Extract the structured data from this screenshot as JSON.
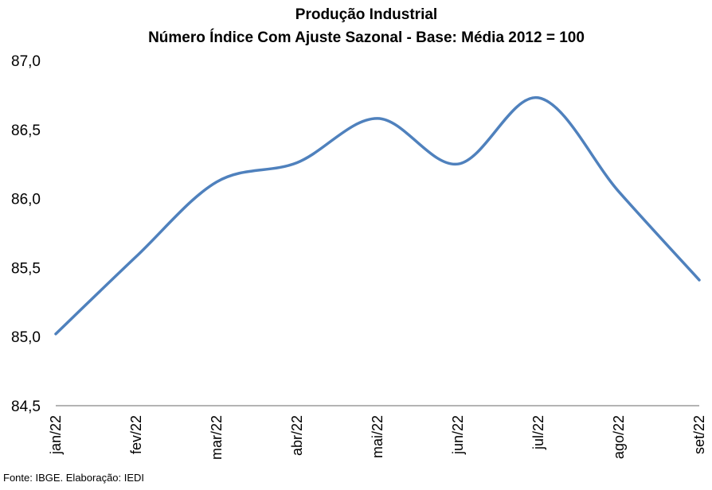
{
  "chart_data": {
    "type": "line",
    "title": "Produção Industrial",
    "subtitle": "Número Índice Com Ajuste Sazonal - Base: Média 2012 = 100",
    "xlabel": "",
    "ylabel": "",
    "categories": [
      "jan/22",
      "fev/22",
      "mar/22",
      "abr/22",
      "mai/22",
      "jun/22",
      "jul/22",
      "ago/22",
      "set/22"
    ],
    "series": [
      {
        "values": [
          85.02,
          85.58,
          86.12,
          86.26,
          86.58,
          86.25,
          86.73,
          86.05,
          85.41
        ],
        "color": "#4f81bd"
      }
    ],
    "ylim": [
      84.5,
      87.0
    ],
    "yticks": [
      "87,0",
      "86,5",
      "86,0",
      "85,5",
      "85,0",
      "84,5"
    ],
    "ytick_values": [
      87.0,
      86.5,
      86.0,
      85.5,
      85.0,
      84.5
    ],
    "grid": false,
    "legend": "none",
    "source": "Fonte: IBGE. Elaboração: IEDI"
  }
}
